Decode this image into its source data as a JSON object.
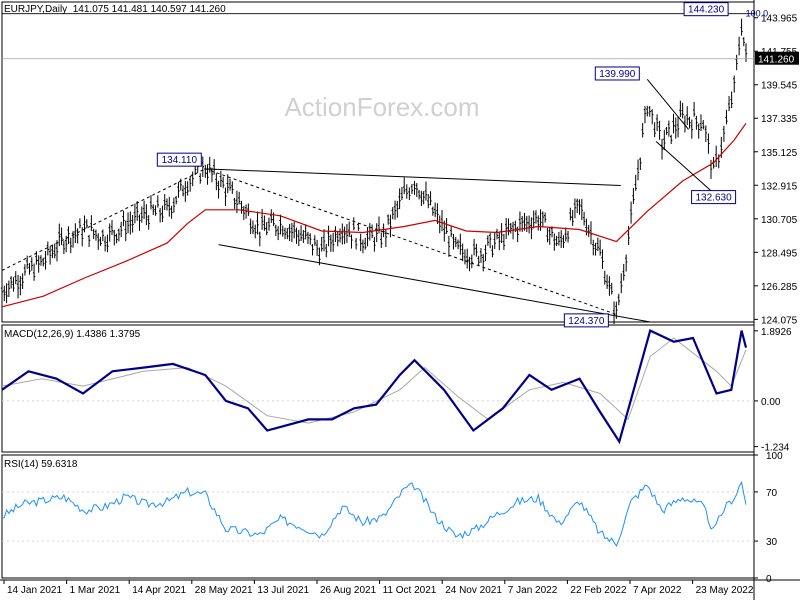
{
  "header": {
    "symbol_timeframe": "EURJPY,Daily",
    "ohlc": "141.075 141.481 140.597 141.260"
  },
  "watermark": "ActionForex.com",
  "colors": {
    "price_bars": "#000000",
    "sma": "#cc0000",
    "macd_line": "#00008b",
    "macd_signal": "#a9a9a9",
    "rsi": "#1e90ff",
    "grid": "#d3d3d3",
    "trendline": "#000000",
    "current_price_bg": "#000000",
    "current_price_text": "#ffffff"
  },
  "chart_data": [
    {
      "type": "ohlc",
      "title": "EURJPY,Daily",
      "price_axis_ticks": [
        "143.965",
        "141.755",
        "139.545",
        "137.335",
        "135.125",
        "132.915",
        "130.705",
        "128.495",
        "126.285",
        "124.075"
      ],
      "ylim": [
        123.9,
        145.0
      ],
      "current_price_label": "141.260",
      "level_100_label": "100.0",
      "annotations": [
        {
          "label": "134.110",
          "value": 134.11,
          "date": "2021-06-01"
        },
        {
          "label": "124.370",
          "value": 124.37,
          "date": "2022-03-07"
        },
        {
          "label": "139.990",
          "value": 139.99,
          "date": "2022-03-28"
        },
        {
          "label": "132.630",
          "value": 132.63,
          "date": "2022-05-12"
        },
        {
          "label": "144.230",
          "value": 144.23,
          "date": "2022-05-30"
        }
      ],
      "series": [
        {
          "name": "",
          "points": [
            [
              "2021-01-14",
              126.0
            ],
            [
              "2021-01-28",
              127.0
            ],
            [
              "2021-02-11",
              127.9
            ],
            [
              "2021-02-25",
              129.4
            ],
            [
              "2021-03-11",
              130.0
            ],
            [
              "2021-03-25",
              129.5
            ],
            [
              "2021-04-08",
              130.3
            ],
            [
              "2021-04-22",
              131.0
            ],
            [
              "2021-05-06",
              131.3
            ],
            [
              "2021-05-20",
              133.2
            ],
            [
              "2021-06-01",
              134.1
            ],
            [
              "2021-06-10",
              133.2
            ],
            [
              "2021-06-24",
              131.8
            ],
            [
              "2021-07-08",
              130.0
            ],
            [
              "2021-07-22",
              130.4
            ],
            [
              "2021-08-05",
              129.6
            ],
            [
              "2021-08-19",
              128.6
            ],
            [
              "2021-09-02",
              130.2
            ],
            [
              "2021-09-16",
              129.4
            ],
            [
              "2021-09-30",
              129.6
            ],
            [
              "2021-10-14",
              132.3
            ],
            [
              "2021-10-21",
              133.2
            ],
            [
              "2021-11-04",
              131.0
            ],
            [
              "2021-11-18",
              128.7
            ],
            [
              "2021-12-02",
              128.3
            ],
            [
              "2021-12-16",
              129.2
            ],
            [
              "2021-12-30",
              130.2
            ],
            [
              "2022-01-13",
              130.8
            ],
            [
              "2022-01-27",
              129.0
            ],
            [
              "2022-02-10",
              131.5
            ],
            [
              "2022-02-24",
              128.4
            ],
            [
              "2022-03-07",
              124.4
            ],
            [
              "2022-03-17",
              130.6
            ],
            [
              "2022-03-28",
              138.3
            ],
            [
              "2022-04-07",
              135.7
            ],
            [
              "2022-04-21",
              137.4
            ],
            [
              "2022-05-05",
              137.1
            ],
            [
              "2022-05-12",
              133.7
            ],
            [
              "2022-05-19",
              136.3
            ],
            [
              "2022-05-26",
              139.3
            ],
            [
              "2022-05-31",
              143.6
            ],
            [
              "2022-06-03",
              141.3
            ]
          ]
        },
        {
          "name": "",
          "points": [
            [
              "2021-01-14",
              124.9
            ],
            [
              "2021-02-11",
              125.6
            ],
            [
              "2021-03-11",
              126.8
            ],
            [
              "2021-04-08",
              127.9
            ],
            [
              "2021-05-06",
              129.1
            ],
            [
              "2021-05-20",
              130.4
            ],
            [
              "2021-06-01",
              131.3
            ],
            [
              "2021-06-24",
              131.3
            ],
            [
              "2021-07-22",
              130.9
            ],
            [
              "2021-08-19",
              129.9
            ],
            [
              "2021-09-16",
              129.8
            ],
            [
              "2021-10-14",
              130.2
            ],
            [
              "2021-11-04",
              130.6
            ],
            [
              "2021-11-25",
              129.9
            ],
            [
              "2021-12-16",
              129.8
            ],
            [
              "2022-01-13",
              130.2
            ],
            [
              "2022-02-10",
              130.0
            ],
            [
              "2022-03-07",
              129.2
            ],
            [
              "2022-03-28",
              131.2
            ],
            [
              "2022-04-21",
              133.2
            ],
            [
              "2022-05-12",
              134.4
            ],
            [
              "2022-05-26",
              135.9
            ],
            [
              "2022-06-03",
              137.0
            ]
          ]
        }
      ],
      "x_axis_labels": [
        "14 Jan 2021",
        "1 Mar 2021",
        "14 Apr 2021",
        "28 May 2021",
        "13 Jul 2021",
        "26 Aug 2021",
        "11 Oct 2021",
        "24 Nov 2021",
        "7 Jan 2022",
        "22 Feb 2022",
        "7 Apr 2022",
        "23 May 2022"
      ]
    },
    {
      "type": "line",
      "title": "MACD(12,26,9) 1.4386 1.3795",
      "axis_ticks": [
        "1.8926",
        "0.00",
        "-1.234"
      ],
      "ylim": [
        -1.38,
        2.05
      ],
      "series": [
        {
          "name": "",
          "points": [
            [
              "2021-01-14",
              0.3
            ],
            [
              "2021-02-01",
              0.8
            ],
            [
              "2021-02-20",
              0.6
            ],
            [
              "2021-03-10",
              0.2
            ],
            [
              "2021-03-30",
              0.8
            ],
            [
              "2021-04-20",
              0.9
            ],
            [
              "2021-05-10",
              1.0
            ],
            [
              "2021-06-01",
              0.7
            ],
            [
              "2021-06-15",
              0.0
            ],
            [
              "2021-06-30",
              -0.2
            ],
            [
              "2021-07-13",
              -0.8
            ],
            [
              "2021-08-10",
              -0.5
            ],
            [
              "2021-08-26",
              -0.5
            ],
            [
              "2021-09-10",
              -0.2
            ],
            [
              "2021-09-25",
              -0.1
            ],
            [
              "2021-10-11",
              0.7
            ],
            [
              "2021-10-21",
              1.1
            ],
            [
              "2021-11-10",
              0.3
            ],
            [
              "2021-11-30",
              -0.8
            ],
            [
              "2021-12-20",
              -0.2
            ],
            [
              "2022-01-07",
              0.7
            ],
            [
              "2022-01-22",
              0.3
            ],
            [
              "2022-02-10",
              0.6
            ],
            [
              "2022-02-24",
              -0.3
            ],
            [
              "2022-03-09",
              -1.1
            ],
            [
              "2022-03-30",
              1.9
            ],
            [
              "2022-04-15",
              1.6
            ],
            [
              "2022-04-28",
              1.7
            ],
            [
              "2022-05-14",
              0.2
            ],
            [
              "2022-05-24",
              0.3
            ],
            [
              "2022-05-31",
              1.9
            ],
            [
              "2022-06-03",
              1.44
            ]
          ]
        },
        {
          "name": "",
          "points": [
            [
              "2021-01-14",
              0.4
            ],
            [
              "2021-02-10",
              0.6
            ],
            [
              "2021-03-10",
              0.4
            ],
            [
              "2021-04-20",
              0.8
            ],
            [
              "2021-05-20",
              0.9
            ],
            [
              "2021-06-15",
              0.4
            ],
            [
              "2021-07-13",
              -0.4
            ],
            [
              "2021-08-10",
              -0.6
            ],
            [
              "2021-09-10",
              -0.3
            ],
            [
              "2021-10-11",
              0.3
            ],
            [
              "2021-10-28",
              0.9
            ],
            [
              "2021-11-20",
              0.1
            ],
            [
              "2021-12-10",
              -0.5
            ],
            [
              "2022-01-07",
              0.3
            ],
            [
              "2022-01-30",
              0.5
            ],
            [
              "2022-02-24",
              0.2
            ],
            [
              "2022-03-15",
              -0.5
            ],
            [
              "2022-03-30",
              1.2
            ],
            [
              "2022-04-15",
              1.7
            ],
            [
              "2022-05-14",
              0.8
            ],
            [
              "2022-05-24",
              0.4
            ],
            [
              "2022-06-03",
              1.38
            ]
          ]
        }
      ]
    },
    {
      "type": "line",
      "title": "RSI(14) 59.6318",
      "axis_ticks": [
        "100",
        "70",
        "30",
        "0"
      ],
      "ylim": [
        0,
        100
      ],
      "series": [
        {
          "name": "",
          "points": [
            [
              "2021-01-14",
              50
            ],
            [
              "2021-01-28",
              60
            ],
            [
              "2021-02-11",
              63
            ],
            [
              "2021-02-25",
              66
            ],
            [
              "2021-03-11",
              55
            ],
            [
              "2021-03-25",
              58
            ],
            [
              "2021-04-08",
              66
            ],
            [
              "2021-04-22",
              60
            ],
            [
              "2021-05-06",
              62
            ],
            [
              "2021-05-20",
              70
            ],
            [
              "2021-06-01",
              68
            ],
            [
              "2021-06-15",
              40
            ],
            [
              "2021-07-08",
              35
            ],
            [
              "2021-07-22",
              48
            ],
            [
              "2021-08-05",
              42
            ],
            [
              "2021-08-19",
              35
            ],
            [
              "2021-09-02",
              58
            ],
            [
              "2021-09-16",
              45
            ],
            [
              "2021-09-30",
              50
            ],
            [
              "2021-10-14",
              72
            ],
            [
              "2021-10-21",
              75
            ],
            [
              "2021-11-04",
              50
            ],
            [
              "2021-11-18",
              34
            ],
            [
              "2021-12-02",
              40
            ],
            [
              "2021-12-16",
              52
            ],
            [
              "2021-12-30",
              62
            ],
            [
              "2022-01-13",
              65
            ],
            [
              "2022-01-27",
              44
            ],
            [
              "2022-02-10",
              63
            ],
            [
              "2022-02-24",
              36
            ],
            [
              "2022-03-07",
              28
            ],
            [
              "2022-03-17",
              62
            ],
            [
              "2022-03-28",
              76
            ],
            [
              "2022-04-07",
              55
            ],
            [
              "2022-04-21",
              66
            ],
            [
              "2022-05-05",
              58
            ],
            [
              "2022-05-12",
              38
            ],
            [
              "2022-05-19",
              56
            ],
            [
              "2022-05-26",
              66
            ],
            [
              "2022-05-31",
              78
            ],
            [
              "2022-06-03",
              59.6
            ]
          ]
        }
      ]
    }
  ]
}
